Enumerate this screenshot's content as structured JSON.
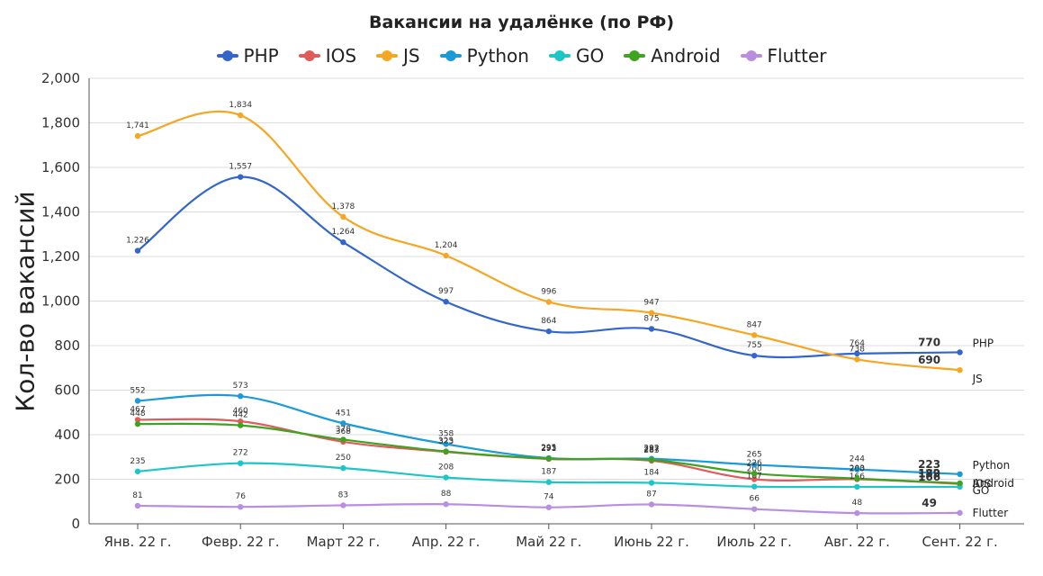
{
  "chart_data": {
    "type": "line",
    "title": "Вакансии на удалёнке (по РФ)",
    "ylabel": "Кол-во вакансий",
    "xlabel": "",
    "ylim": [
      0,
      2000
    ],
    "yticks": [
      0,
      200,
      400,
      600,
      800,
      1000,
      1200,
      1400,
      1600,
      1800,
      2000
    ],
    "ytick_labels": [
      "0",
      "200",
      "400",
      "600",
      "800",
      "1,000",
      "1,200",
      "1,400",
      "1,600",
      "1,800",
      "2,000"
    ],
    "categories": [
      "Янв. 22 г.",
      "Февр. 22 г.",
      "Март 22 г.",
      "Апр. 22 г.",
      "Май 22 г.",
      "Июнь 22 г.",
      "Июль 22 г.",
      "Авг. 22 г.",
      "Сент. 22 г."
    ],
    "grid": true,
    "legend": "top-center",
    "series": [
      {
        "name": "PHP",
        "color": "#3366cc",
        "values": [
          1226,
          1557,
          1264,
          997,
          864,
          875,
          755,
          764,
          770
        ],
        "labels": [
          "1,226",
          "1,557",
          "1,264",
          "997",
          "864",
          "875",
          "755",
          "764",
          "770"
        ],
        "end_label": "PHP"
      },
      {
        "name": "IOS",
        "color": "#e05c5c",
        "values": [
          467,
          460,
          368,
          323,
          291,
          283,
          200,
          200,
          179
        ],
        "labels": [
          "467",
          "460",
          "368",
          "323",
          "291",
          "283",
          "200",
          "200",
          "179"
        ],
        "end_label": "IOS"
      },
      {
        "name": "JS",
        "color": "#f5a623",
        "values": [
          1741,
          1834,
          1378,
          1204,
          996,
          947,
          847,
          738,
          690
        ],
        "labels": [
          "1,741",
          "1,834",
          "1,378",
          "1,204",
          "996",
          "947",
          "847",
          "738",
          "690"
        ],
        "end_label": "JS"
      },
      {
        "name": "Python",
        "color": "#1a9bd7",
        "values": [
          552,
          573,
          451,
          358,
          295,
          292,
          265,
          244,
          223
        ],
        "labels": [
          "552",
          "573",
          "451",
          "358",
          "295",
          "292",
          "265",
          "244",
          "223"
        ],
        "end_label": "Python"
      },
      {
        "name": "GO",
        "color": "#1cc6c6",
        "values": [
          235,
          272,
          250,
          208,
          187,
          184,
          167,
          166,
          166
        ],
        "labels": [
          "235",
          "272",
          "250",
          "208",
          "187",
          "184",
          "167",
          "166",
          "166"
        ],
        "end_label": "GO"
      },
      {
        "name": "Android",
        "color": "#3ea321",
        "values": [
          448,
          442,
          378,
          325,
          293,
          287,
          226,
          203,
          182
        ],
        "labels": [
          "448",
          "442",
          "378",
          "325",
          "293",
          "287",
          "226",
          "203",
          "182"
        ],
        "end_label": "Android"
      },
      {
        "name": "Flutter",
        "color": "#b98ee0",
        "values": [
          81,
          76,
          83,
          88,
          74,
          87,
          66,
          48,
          49
        ],
        "labels": [
          "81",
          "76",
          "83",
          "88",
          "74",
          "87",
          "66",
          "48",
          "49"
        ],
        "end_label": "Flutter"
      }
    ]
  }
}
